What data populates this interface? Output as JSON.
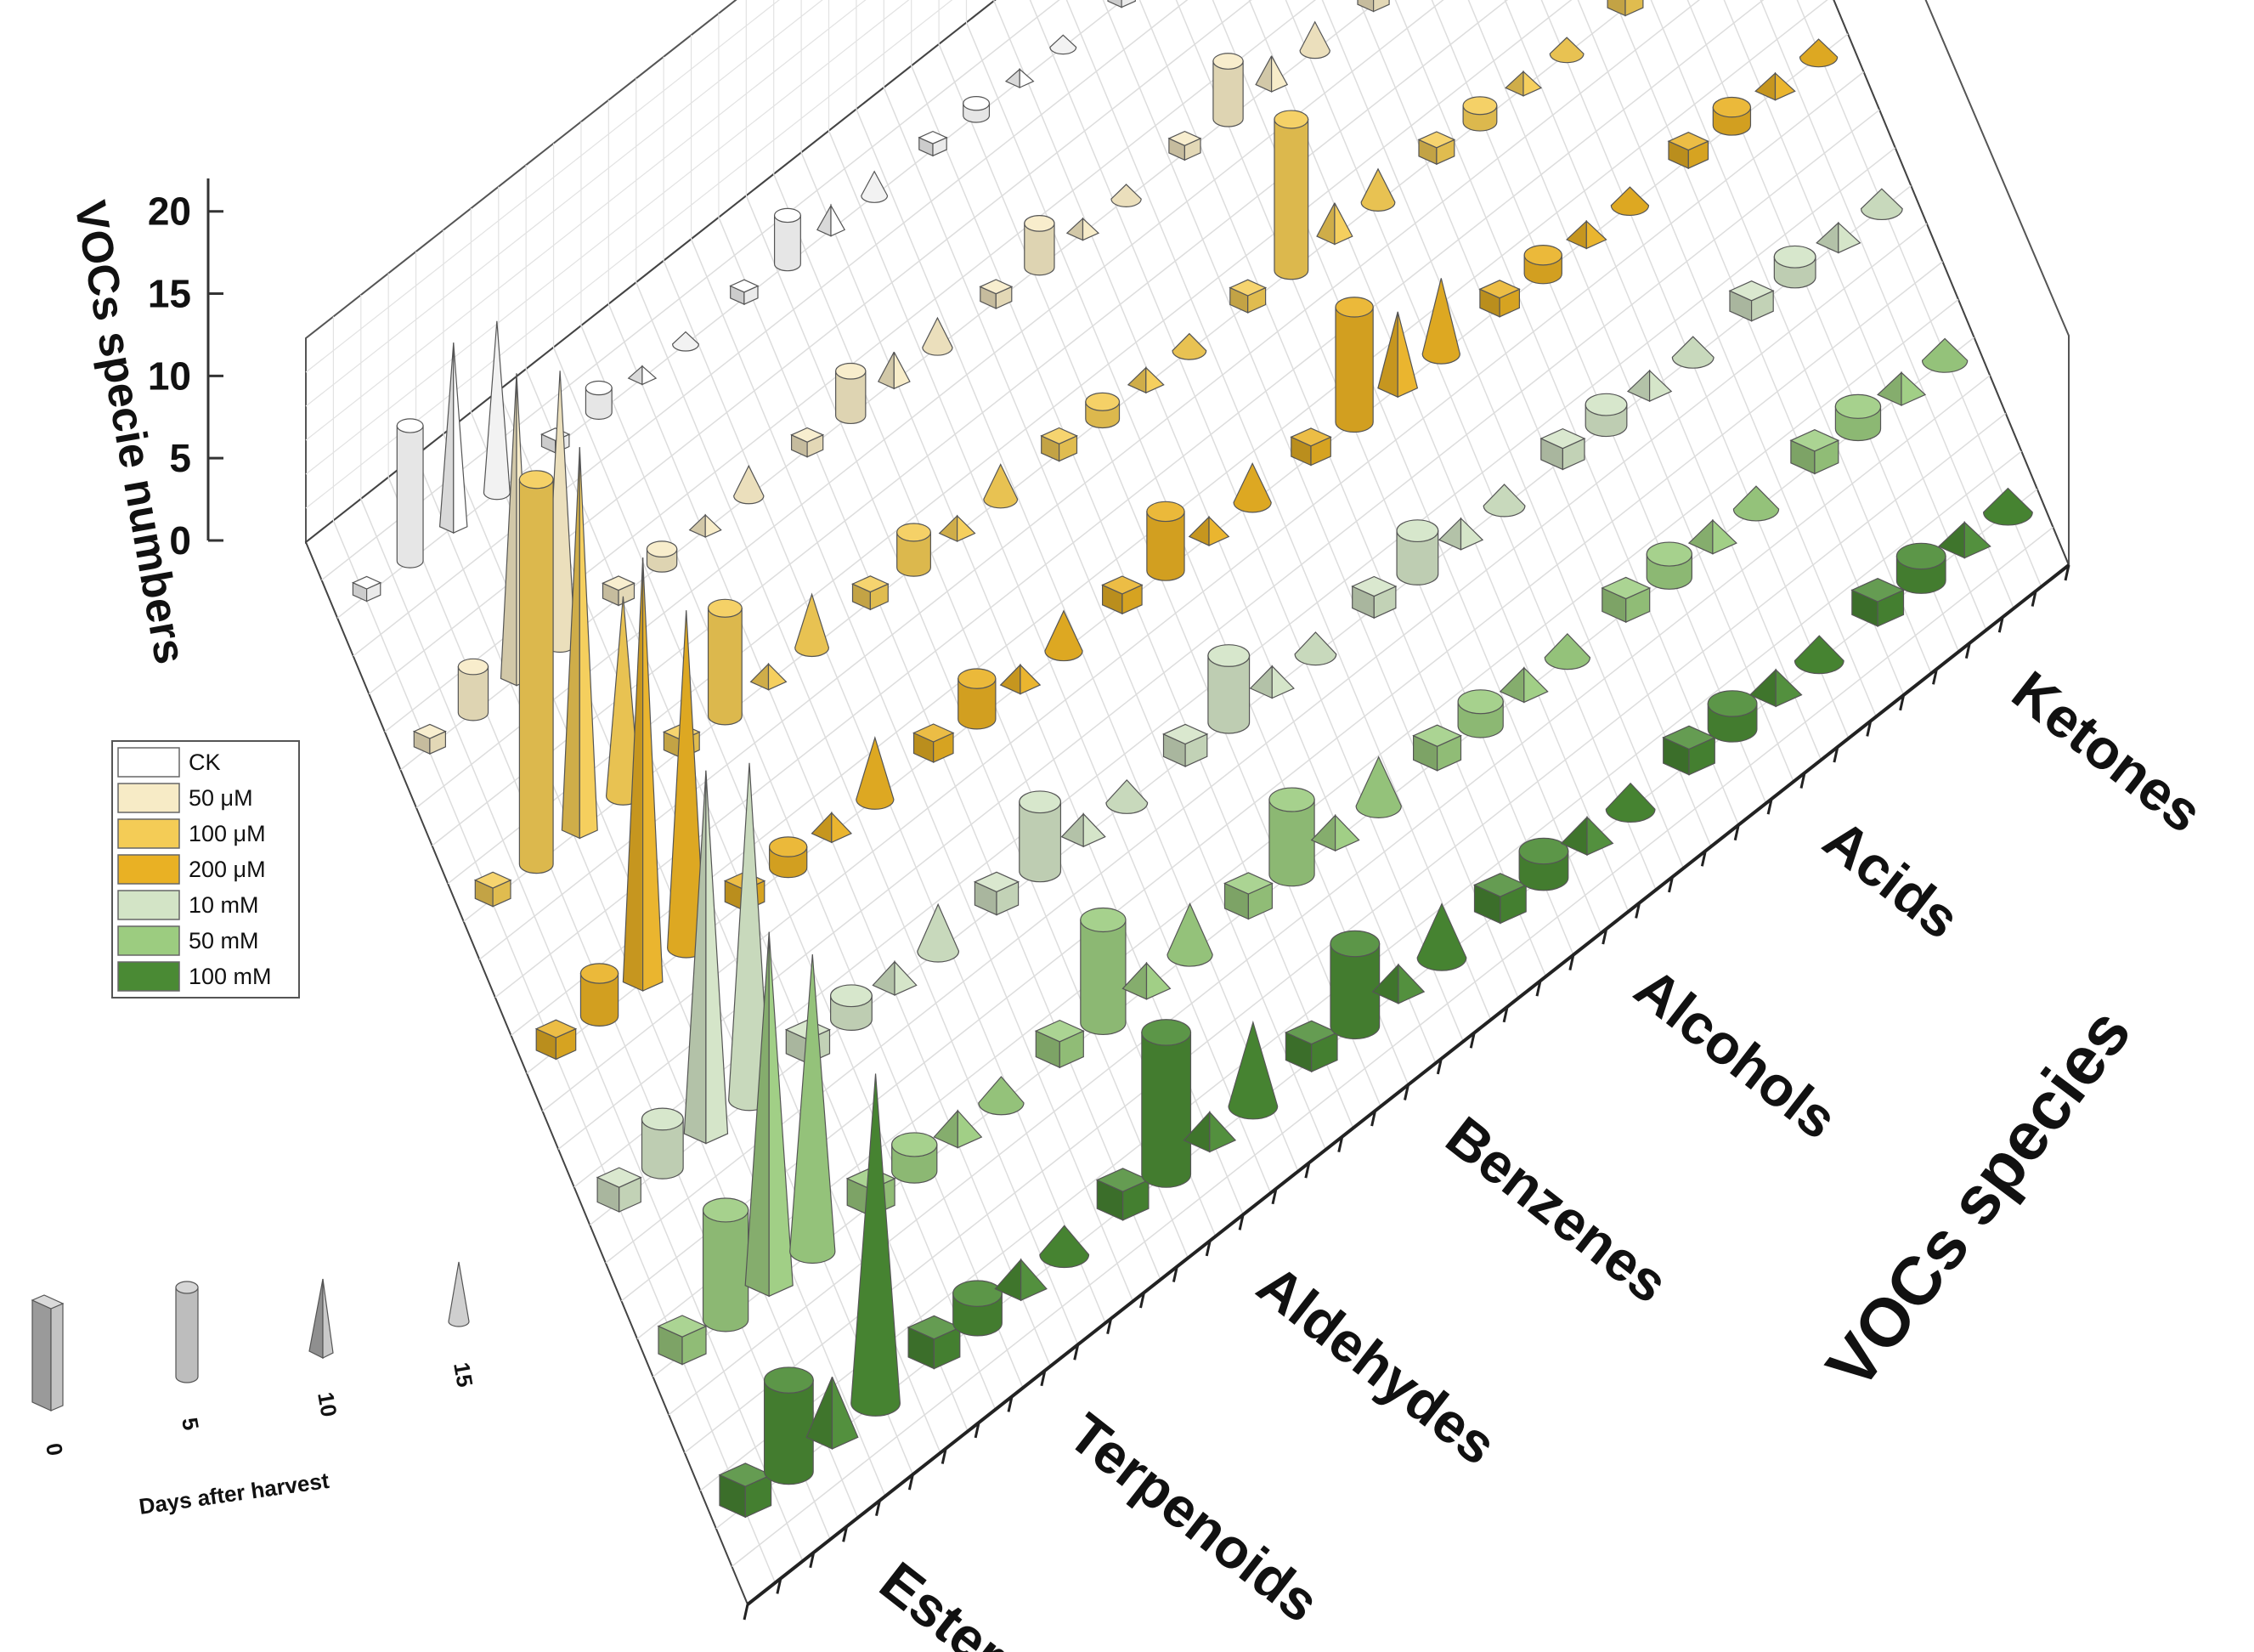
{
  "chart_data": {
    "type": "bar3d",
    "title": "",
    "zlabel": "VOCs specie numbers",
    "ylabel": "VOCs species",
    "zlim": [
      0,
      22
    ],
    "z_ticks": [
      "0",
      "5",
      "10",
      "15",
      "20"
    ],
    "categories": [
      "Esters",
      "Terpenoids",
      "Aldehydes",
      "Benzenes",
      "Alcohols",
      "Acids",
      "Ketones"
    ],
    "treatments": [
      "CK",
      "50 μM",
      "100 μM",
      "200 μM",
      "10 mM",
      "50 mM",
      "100 mM"
    ],
    "treatment_colors": [
      "#ffffff",
      "#f7ebc6",
      "#f4cc56",
      "#e9b124",
      "#d3e4c6",
      "#9ccc80",
      "#4a8a34"
    ],
    "days_label": "Days after harvest",
    "days": [
      "0",
      "5",
      "10",
      "15"
    ],
    "day_shapes": [
      "box",
      "cylinder",
      "pyramid",
      "cone"
    ],
    "series": [
      {
        "treatment": "CK",
        "values": [
          [
            1,
            11,
            15,
            14
          ],
          [
            1,
            2,
            1,
            1
          ],
          [
            1,
            4,
            2,
            2
          ],
          [
            1,
            1,
            1,
            1
          ],
          [
            1,
            6,
            3,
            3
          ],
          [
            1,
            1,
            1,
            1
          ],
          [
            1,
            1,
            1,
            2
          ]
        ]
      },
      {
        "treatment": "50 μM",
        "values": [
          [
            1,
            3,
            20,
            18
          ],
          [
            1,
            1,
            1,
            2
          ],
          [
            1,
            3,
            2,
            2
          ],
          [
            1,
            3,
            1,
            1
          ],
          [
            1,
            4,
            2,
            2
          ],
          [
            1,
            1,
            1,
            1
          ],
          [
            1,
            1,
            1,
            1
          ]
        ]
      },
      {
        "treatment": "100 μM",
        "values": [
          [
            1,
            21,
            21,
            11
          ],
          [
            1,
            6,
            1,
            3
          ],
          [
            1,
            2,
            1,
            2
          ],
          [
            1,
            1,
            1,
            1
          ],
          [
            1,
            9,
            2,
            2
          ],
          [
            1,
            1,
            1,
            1
          ],
          [
            1,
            1,
            1,
            1
          ]
        ]
      },
      {
        "treatment": "200 μM",
        "values": [
          [
            1,
            2,
            20,
            16
          ],
          [
            1,
            1,
            1,
            3
          ],
          [
            1,
            2,
            1,
            2
          ],
          [
            1,
            3,
            1,
            2
          ],
          [
            1,
            6,
            4,
            4
          ],
          [
            1,
            1,
            1,
            1
          ],
          [
            1,
            1,
            1,
            1
          ]
        ]
      },
      {
        "treatment": "10 mM",
        "values": [
          [
            1,
            2,
            15,
            14
          ],
          [
            1,
            1,
            1,
            2
          ],
          [
            1,
            3,
            1,
            1
          ],
          [
            1,
            3,
            1,
            1
          ],
          [
            1,
            2,
            1,
            1
          ],
          [
            1,
            1,
            1,
            1
          ],
          [
            1,
            1,
            1,
            1
          ]
        ]
      },
      {
        "treatment": "50 mM",
        "values": [
          [
            1,
            4,
            13,
            11
          ],
          [
            1,
            1,
            1,
            1
          ],
          [
            1,
            4,
            1,
            2
          ],
          [
            1,
            3,
            1,
            2
          ],
          [
            1,
            1,
            1,
            1
          ],
          [
            1,
            1,
            1,
            1
          ],
          [
            1,
            1,
            1,
            1
          ]
        ]
      },
      {
        "treatment": "100 mM",
        "values": [
          [
            1,
            3,
            2,
            11
          ],
          [
            1,
            1,
            1,
            1
          ],
          [
            1,
            5,
            1,
            3
          ],
          [
            1,
            3,
            1,
            2
          ],
          [
            1,
            1,
            1,
            1
          ],
          [
            1,
            1,
            1,
            1
          ],
          [
            1,
            1,
            1,
            1
          ]
        ]
      }
    ],
    "legend_position": "left",
    "grid": true
  }
}
